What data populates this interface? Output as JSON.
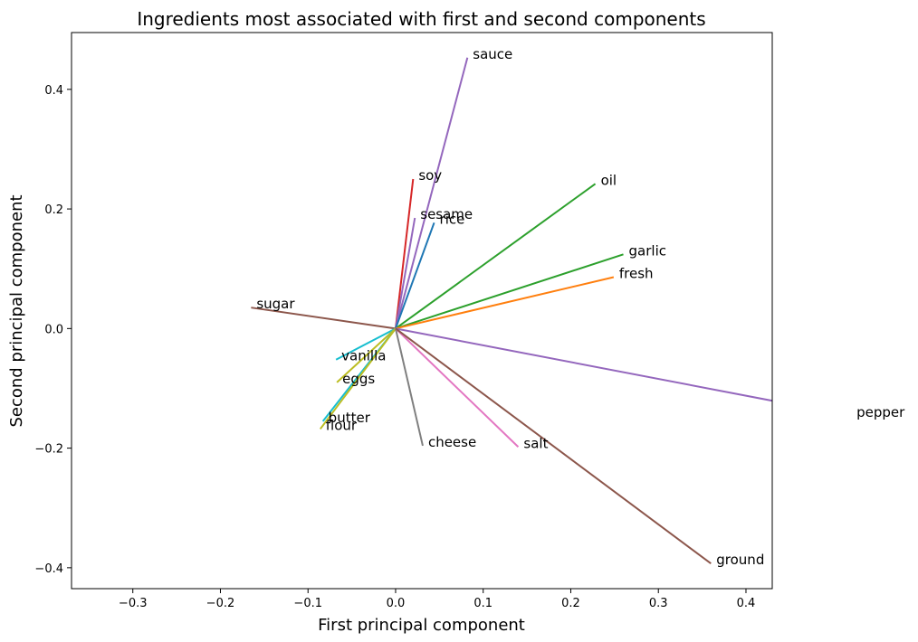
{
  "chart_data": {
    "type": "line",
    "title": "Ingredients most associated with first and second components",
    "xlabel": "First principal component",
    "ylabel": "Second principal component",
    "xlim": [
      -0.37,
      0.43
    ],
    "ylim": [
      -0.435,
      0.495
    ],
    "xticks": [
      -0.3,
      -0.2,
      -0.1,
      0.0,
      0.1,
      0.2,
      0.3,
      0.4
    ],
    "yticks": [
      -0.4,
      -0.2,
      0.0,
      0.2,
      0.4
    ],
    "xtick_labels": [
      "−0.3",
      "−0.2",
      "−0.1",
      "0.0",
      "0.1",
      "0.2",
      "0.3",
      "0.4"
    ],
    "ytick_labels": [
      "−0.4",
      "−0.2",
      "0.0",
      "0.2",
      "0.4"
    ],
    "grid": false,
    "series": [
      {
        "name": "sauce",
        "x": 0.082,
        "y": 0.453,
        "color": "#9467bd"
      },
      {
        "name": "soy",
        "x": 0.02,
        "y": 0.25,
        "color": "#d62728"
      },
      {
        "name": "oil",
        "x": 0.228,
        "y": 0.242,
        "color": "#2ca02c"
      },
      {
        "name": "sesame",
        "x": 0.022,
        "y": 0.185,
        "color": "#9467bd"
      },
      {
        "name": "rice",
        "x": 0.044,
        "y": 0.177,
        "color": "#1f77b4"
      },
      {
        "name": "garlic",
        "x": 0.26,
        "y": 0.124,
        "color": "#2ca02c"
      },
      {
        "name": "fresh",
        "x": 0.249,
        "y": 0.086,
        "color": "#ff7f0e"
      },
      {
        "name": "sugar",
        "x": -0.165,
        "y": 0.035,
        "color": "#8c564b"
      },
      {
        "name": "vanilla",
        "x": -0.068,
        "y": -0.052,
        "color": "#17becf"
      },
      {
        "name": "eggs",
        "x": -0.067,
        "y": -0.09,
        "color": "#bcbd22"
      },
      {
        "name": "butter",
        "x": -0.083,
        "y": -0.155,
        "color": "#17becf"
      },
      {
        "name": "flour",
        "x": -0.086,
        "y": -0.168,
        "color": "#bcbd22"
      },
      {
        "name": "cheese",
        "x": 0.031,
        "y": -0.196,
        "color": "#7f7f7f"
      },
      {
        "name": "salt",
        "x": 0.14,
        "y": -0.198,
        "color": "#e377c2"
      },
      {
        "name": "pepper",
        "x": 0.52,
        "y": -0.146,
        "color": "#9467bd"
      },
      {
        "name": "ground",
        "x": 0.36,
        "y": -0.393,
        "color": "#8c564b"
      }
    ]
  }
}
